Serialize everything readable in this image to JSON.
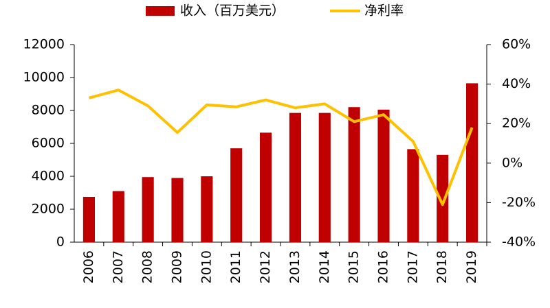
{
  "chart_data": {
    "type": "bar-line",
    "categories": [
      "2006",
      "2007",
      "2008",
      "2009",
      "2010",
      "2011",
      "2012",
      "2013",
      "2014",
      "2015",
      "2016",
      "2017",
      "2018",
      "2019"
    ],
    "series": [
      {
        "name": "收入（百万美元）",
        "type": "bar",
        "color": "#c00000",
        "values": [
          2750,
          3100,
          3950,
          3900,
          4000,
          5700,
          6650,
          7850,
          7850,
          8200,
          8050,
          5650,
          5300,
          9650
        ]
      },
      {
        "name": "净利率",
        "type": "line",
        "axis": "y2",
        "color": "#ffc000",
        "values": [
          33,
          37,
          29,
          15.5,
          29.5,
          28.5,
          32,
          28,
          30,
          21,
          24.5,
          11,
          -21,
          18
        ]
      }
    ],
    "ylim": [
      0,
      12000
    ],
    "yticks": [
      0,
      2000,
      4000,
      6000,
      8000,
      10000,
      12000
    ],
    "y2lim": [
      -40,
      60
    ],
    "y2ticks": [
      {
        "value": -40,
        "label": "-40%"
      },
      {
        "value": -20,
        "label": "-20%"
      },
      {
        "value": 0,
        "label": "0%"
      },
      {
        "value": 20,
        "label": "20%"
      },
      {
        "value": 40,
        "label": "40%"
      },
      {
        "value": 60,
        "label": "60%"
      }
    ],
    "grid": false
  }
}
